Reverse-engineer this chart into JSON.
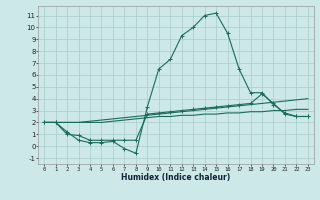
{
  "bg_color": "#cce8e8",
  "grid_color": "#aacccc",
  "line_color": "#1a6b5a",
  "xlabel": "Humidex (Indice chaleur)",
  "xlim": [
    -0.5,
    23.5
  ],
  "ylim": [
    -1.5,
    11.8
  ],
  "yticks": [
    -1,
    0,
    1,
    2,
    3,
    4,
    5,
    6,
    7,
    8,
    9,
    10,
    11
  ],
  "xticks": [
    0,
    1,
    2,
    3,
    4,
    5,
    6,
    7,
    8,
    9,
    10,
    11,
    12,
    13,
    14,
    15,
    16,
    17,
    18,
    19,
    20,
    21,
    22,
    23
  ],
  "line1_x": [
    0,
    1,
    2,
    3,
    4,
    5,
    6,
    7,
    8,
    9,
    10,
    11,
    12,
    13,
    14,
    15,
    16,
    17,
    18,
    19,
    20,
    21,
    22,
    23
  ],
  "line1_y": [
    2.0,
    2.0,
    1.2,
    0.5,
    0.3,
    0.3,
    0.4,
    -0.2,
    -0.6,
    3.3,
    6.5,
    7.3,
    9.3,
    10.0,
    11.0,
    11.2,
    9.5,
    6.5,
    4.5,
    4.5,
    3.5,
    2.8,
    2.5,
    2.5
  ],
  "line2_x": [
    0,
    1,
    2,
    3,
    4,
    5,
    6,
    7,
    8,
    9,
    10,
    11,
    12,
    13,
    14,
    15,
    16,
    17,
    18,
    19,
    20,
    21,
    22,
    23
  ],
  "line2_y": [
    2.0,
    2.0,
    1.0,
    0.9,
    0.5,
    0.5,
    0.5,
    0.5,
    0.5,
    2.7,
    2.8,
    2.9,
    3.0,
    3.1,
    3.2,
    3.3,
    3.4,
    3.5,
    3.6,
    4.4,
    3.6,
    2.7,
    2.5,
    2.5
  ],
  "line3_x": [
    0,
    1,
    2,
    3,
    4,
    5,
    6,
    7,
    8,
    9,
    10,
    11,
    12,
    13,
    14,
    15,
    16,
    17,
    18,
    19,
    20,
    21,
    22,
    23
  ],
  "line3_y": [
    2.0,
    2.0,
    2.0,
    2.0,
    2.1,
    2.2,
    2.3,
    2.4,
    2.5,
    2.6,
    2.7,
    2.8,
    2.9,
    3.0,
    3.1,
    3.2,
    3.3,
    3.4,
    3.5,
    3.6,
    3.7,
    3.8,
    3.9,
    4.0
  ],
  "line4_x": [
    0,
    1,
    2,
    3,
    4,
    5,
    6,
    7,
    8,
    9,
    10,
    11,
    12,
    13,
    14,
    15,
    16,
    17,
    18,
    19,
    20,
    21,
    22,
    23
  ],
  "line4_y": [
    2.0,
    2.0,
    2.0,
    2.0,
    2.0,
    2.0,
    2.1,
    2.2,
    2.3,
    2.4,
    2.5,
    2.5,
    2.6,
    2.6,
    2.7,
    2.7,
    2.8,
    2.8,
    2.9,
    2.9,
    3.0,
    3.0,
    3.1,
    3.1
  ]
}
